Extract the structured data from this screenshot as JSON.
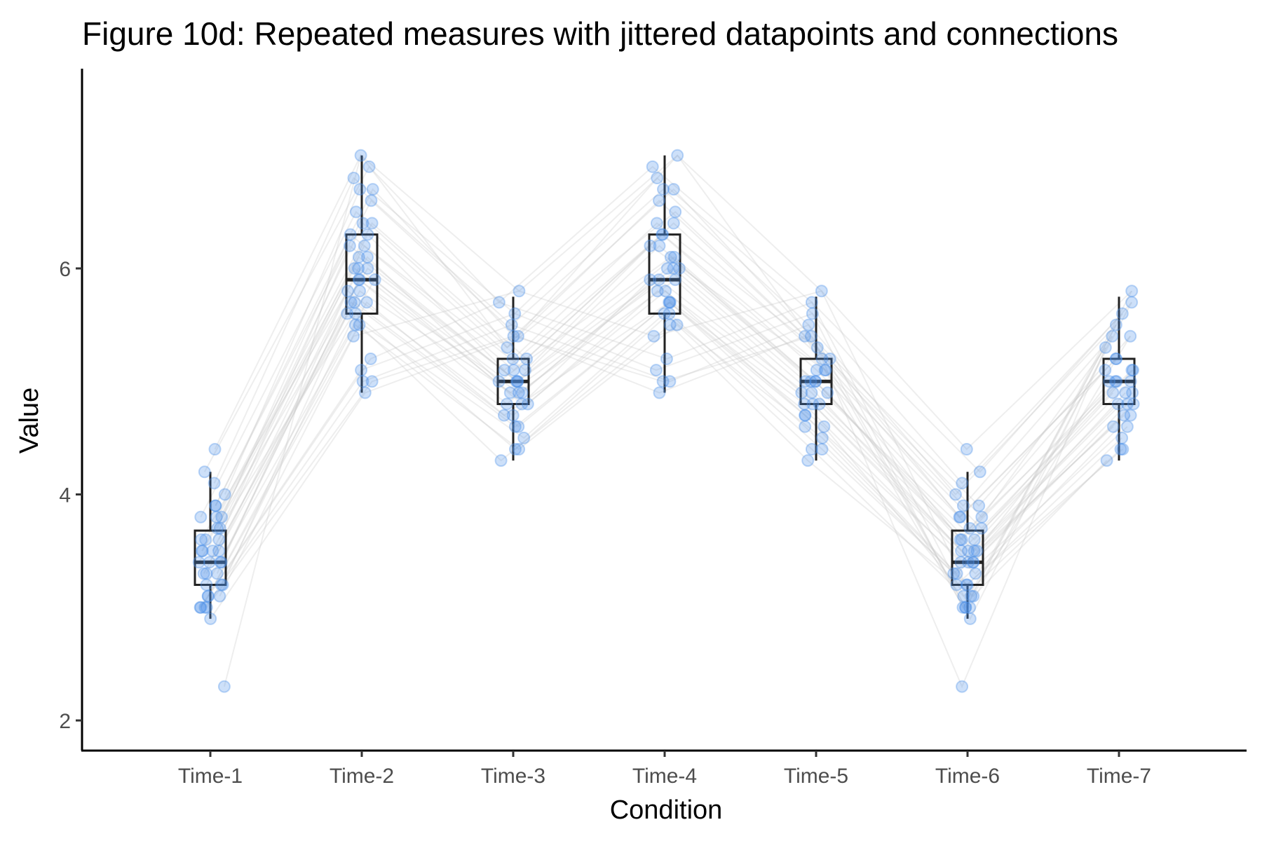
{
  "chart_data": {
    "type": "box",
    "title": "Figure 10d: Repeated measures with jittered datapoints and connections",
    "xlabel": "Condition",
    "ylabel": "Value",
    "ylim": [
      1.75,
      7.6
    ],
    "yticks": [
      2,
      4,
      6
    ],
    "grid": false,
    "categories": [
      "Time-1",
      "Time-2",
      "Time-3",
      "Time-4",
      "Time-5",
      "Time-6",
      "Time-7"
    ],
    "boxes": [
      {
        "category": "Time-1",
        "min": 2.9,
        "q1": 3.2,
        "median": 3.4,
        "q3": 3.68,
        "max": 4.2
      },
      {
        "category": "Time-2",
        "min": 4.9,
        "q1": 5.6,
        "median": 5.9,
        "q3": 6.3,
        "max": 7.0
      },
      {
        "category": "Time-3",
        "min": 4.3,
        "q1": 4.8,
        "median": 5.0,
        "q3": 5.2,
        "max": 5.75
      },
      {
        "category": "Time-4",
        "min": 4.9,
        "q1": 5.6,
        "median": 5.9,
        "q3": 6.3,
        "max": 7.0
      },
      {
        "category": "Time-5",
        "min": 4.3,
        "q1": 4.8,
        "median": 5.0,
        "q3": 5.2,
        "max": 5.75
      },
      {
        "category": "Time-6",
        "min": 2.9,
        "q1": 3.2,
        "median": 3.4,
        "q3": 3.68,
        "max": 4.2
      },
      {
        "category": "Time-7",
        "min": 4.3,
        "q1": 4.8,
        "median": 5.0,
        "q3": 5.2,
        "max": 5.75
      }
    ],
    "points": {
      "Time-1": [
        4.4,
        4.2,
        4.1,
        4.0,
        3.9,
        3.9,
        3.8,
        3.8,
        3.8,
        3.7,
        3.7,
        3.6,
        3.6,
        3.6,
        3.5,
        3.5,
        3.5,
        3.5,
        3.4,
        3.4,
        3.4,
        3.4,
        3.3,
        3.3,
        3.3,
        3.2,
        3.2,
        3.2,
        3.1,
        3.1,
        3.1,
        3.0,
        3.0,
        3.0,
        3.0,
        2.9,
        2.3
      ],
      "Time-2": [
        7.0,
        6.9,
        6.8,
        6.7,
        6.7,
        6.6,
        6.5,
        6.4,
        6.4,
        6.3,
        6.3,
        6.2,
        6.2,
        6.1,
        6.1,
        6.0,
        6.0,
        6.0,
        5.9,
        5.9,
        5.9,
        5.8,
        5.8,
        5.7,
        5.7,
        5.7,
        5.6,
        5.6,
        5.5,
        5.5,
        5.4,
        5.2,
        5.1,
        5.0,
        5.0,
        4.9
      ],
      "Time-3": [
        5.8,
        5.7,
        5.6,
        5.5,
        5.4,
        5.4,
        5.3,
        5.2,
        5.2,
        5.1,
        5.1,
        5.1,
        5.0,
        5.0,
        5.0,
        5.0,
        4.9,
        4.9,
        4.9,
        4.8,
        4.8,
        4.8,
        4.7,
        4.7,
        4.6,
        4.6,
        4.5,
        4.4,
        4.4,
        4.3
      ],
      "Time-4": [
        7.0,
        6.9,
        6.8,
        6.7,
        6.7,
        6.6,
        6.5,
        6.4,
        6.4,
        6.3,
        6.3,
        6.2,
        6.2,
        6.1,
        6.1,
        6.0,
        6.0,
        6.0,
        5.9,
        5.9,
        5.9,
        5.8,
        5.8,
        5.7,
        5.7,
        5.7,
        5.6,
        5.6,
        5.5,
        5.5,
        5.4,
        5.2,
        5.1,
        5.0,
        5.0,
        4.9
      ],
      "Time-5": [
        5.8,
        5.7,
        5.6,
        5.5,
        5.4,
        5.4,
        5.3,
        5.2,
        5.2,
        5.1,
        5.1,
        5.1,
        5.0,
        5.0,
        5.0,
        5.0,
        4.9,
        4.9,
        4.9,
        4.8,
        4.8,
        4.8,
        4.7,
        4.7,
        4.6,
        4.6,
        4.5,
        4.4,
        4.4,
        4.3
      ],
      "Time-6": [
        4.4,
        4.2,
        4.1,
        4.0,
        3.9,
        3.9,
        3.8,
        3.8,
        3.8,
        3.7,
        3.7,
        3.6,
        3.6,
        3.6,
        3.5,
        3.5,
        3.5,
        3.5,
        3.4,
        3.4,
        3.4,
        3.4,
        3.3,
        3.3,
        3.3,
        3.2,
        3.2,
        3.2,
        3.1,
        3.1,
        3.1,
        3.0,
        3.0,
        3.0,
        3.0,
        2.9,
        2.3
      ],
      "Time-7": [
        5.8,
        5.7,
        5.6,
        5.5,
        5.4,
        5.4,
        5.3,
        5.2,
        5.2,
        5.1,
        5.1,
        5.1,
        5.0,
        5.0,
        5.0,
        5.0,
        4.9,
        4.9,
        4.9,
        4.8,
        4.8,
        4.8,
        4.7,
        4.7,
        4.6,
        4.6,
        4.5,
        4.4,
        4.4,
        4.3
      ]
    },
    "point_color": "#4a8fe8",
    "line_color": "#c8c8c8",
    "box_color": "#222222"
  }
}
